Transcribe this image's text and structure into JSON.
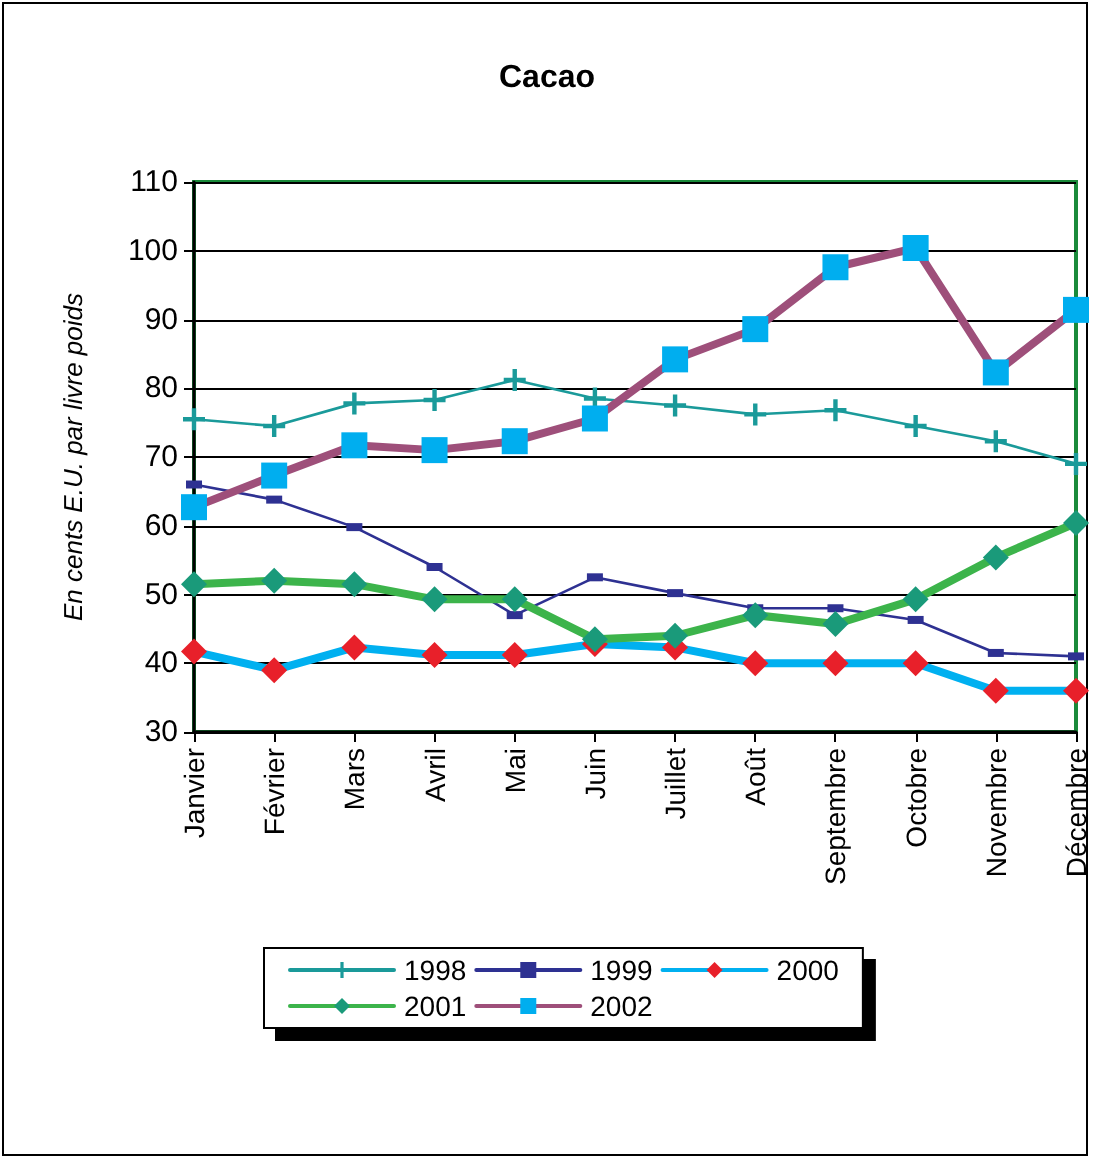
{
  "chart_data": {
    "type": "line",
    "title": "Cacao",
    "ylabel": "En cents E.U. par livre poids",
    "categories": [
      "Janvier",
      "Février",
      "Mars",
      "Avril",
      "Mai",
      "Juin",
      "Juillet",
      "Août",
      "Septembre",
      "Octobre",
      "Novembre",
      "Décembre"
    ],
    "ylim": [
      30,
      110
    ],
    "yticks": [
      30,
      40,
      50,
      60,
      70,
      80,
      90,
      100,
      110
    ],
    "grid": "y",
    "legend": "bottom",
    "series": [
      {
        "name": "1998",
        "color": "#1a9a9a",
        "marker": "cross",
        "values": [
          75.5,
          74.5,
          77.8,
          78.3,
          81.2,
          78.5,
          77.5,
          76.2,
          76.8,
          74.5,
          72.3,
          69
        ]
      },
      {
        "name": "1999",
        "color": "#2e3192",
        "marker": "square",
        "values": [
          66,
          63.8,
          59.8,
          54,
          47,
          52.5,
          50.2,
          48,
          48,
          46.3,
          41.5,
          41
        ]
      },
      {
        "name": "2000",
        "color": "#00b0f0",
        "marker": "diamond",
        "colors": [
          "#e8202a",
          "#e8202a",
          "#e8202a",
          "#e8202a",
          "#e8202a",
          "#e8202a",
          "#e8202a",
          "#e8202a",
          "#e8202a",
          "#e8202a",
          "#e8202a",
          "#e8202a"
        ],
        "values": [
          41.7,
          39,
          42.3,
          41.2,
          41.2,
          42.8,
          42.3,
          40,
          40,
          40,
          36,
          36
        ]
      },
      {
        "name": "2001",
        "color": "#3cb44b",
        "marker": "diamond",
        "colors": [
          "#1a9a7a",
          "#1a9a7a",
          "#1a9a7a",
          "#1a9a7a",
          "#1a9a7a",
          "#1a9a7a",
          "#1a9a7a",
          "#1a9a7a",
          "#1a9a7a",
          "#1a9a7a",
          "#1a9a7a",
          "#1a9a7a"
        ],
        "values": [
          51.5,
          52,
          51.5,
          49.3,
          49.3,
          43.5,
          44,
          47,
          45.7,
          49.3,
          55.4,
          60.4
        ]
      },
      {
        "name": "2002",
        "color": "#9e4f7a",
        "marker": "square",
        "colors": [
          "#00aeef",
          "#00aeef",
          "#00aeef",
          "#00aeef",
          "#00aeef",
          "#00aeef",
          "#00aeef",
          "#00aeef",
          "#00aeef",
          "#00aeef",
          "#00aeef",
          "#00aeef"
        ],
        "values": [
          62.7,
          67.3,
          71.7,
          71,
          72.3,
          75.6,
          84.2,
          88.6,
          97.6,
          100.4,
          82.3,
          91.4
        ]
      }
    ]
  }
}
